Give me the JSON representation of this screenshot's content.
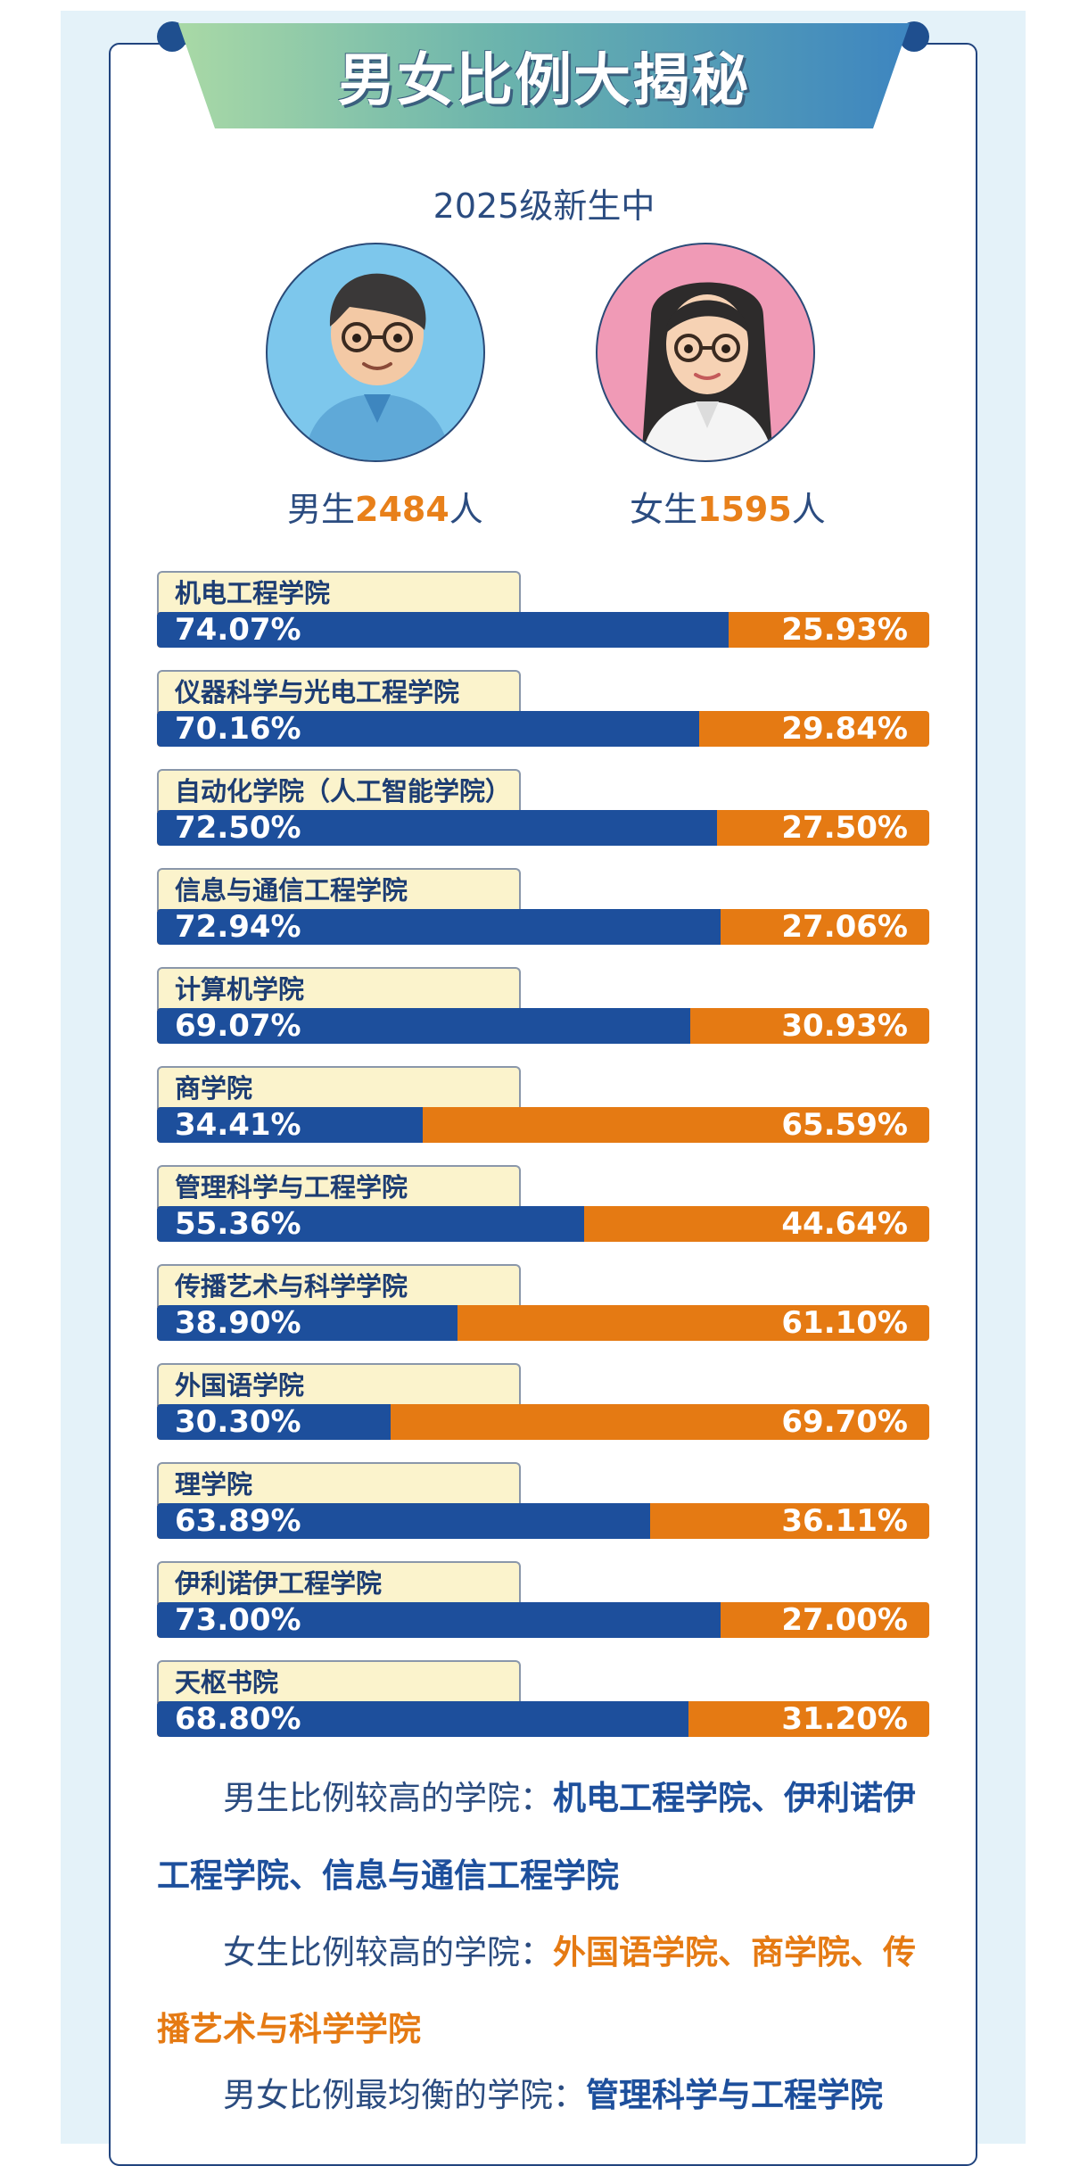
{
  "header": {
    "title": "男女比例大揭秘"
  },
  "subtitle": "2025级新生中",
  "stats": {
    "male_prefix": "男生",
    "male_count": "2484",
    "male_suffix": "人",
    "female_prefix": "女生",
    "female_count": "1595",
    "female_suffix": "人"
  },
  "colors": {
    "male": "#1d4f9c",
    "female": "#e57a13",
    "tab": "#fbf3cc"
  },
  "chart_data": {
    "type": "bar",
    "stacked": true,
    "orientation": "horizontal",
    "categories": [
      "机电工程学院",
      "仪器科学与光电工程学院",
      "自动化学院（人工智能学院）",
      "信息与通信工程学院",
      "计算机学院",
      "商学院",
      "管理科学与工程学院",
      "传播艺术与科学学院",
      "外国语学院",
      "理学院",
      "伊利诺伊工程学院",
      "天枢书院"
    ],
    "series": [
      {
        "values": [
          74.07,
          70.16,
          72.5,
          72.94,
          69.07,
          34.41,
          55.36,
          38.9,
          30.3,
          63.89,
          73.0,
          68.8
        ],
        "labels": [
          "74.07%",
          "70.16%",
          "72.50%",
          "72.94%",
          "69.07%",
          "34.41%",
          "55.36%",
          "38.90%",
          "30.30%",
          "63.89%",
          "73.00%",
          "68.80%"
        ]
      },
      {
        "values": [
          25.93,
          29.84,
          27.5,
          27.06,
          30.93,
          65.59,
          44.64,
          61.1,
          69.7,
          36.11,
          27.0,
          31.2
        ],
        "labels": [
          "25.93%",
          "29.84%",
          "27.50%",
          "27.06%",
          "30.93%",
          "65.59%",
          "44.64%",
          "61.10%",
          "69.70%",
          "36.11%",
          "27.00%",
          "31.20%"
        ]
      }
    ],
    "xlim": [
      0,
      100
    ]
  },
  "summary": {
    "male_high_label": "男生比例较高的学院：",
    "male_high_a": "机电工程学院、伊利诺伊",
    "male_high_b": "工程学院、信息与通信工程学院",
    "female_high_label": "女生比例较高的学院：",
    "female_high_a": "外国语学院、商学院、传",
    "female_high_b": "播艺术与科学学院",
    "balanced_label": "男女比例最均衡的学院：",
    "balanced_value": "管理科学与工程学院"
  }
}
